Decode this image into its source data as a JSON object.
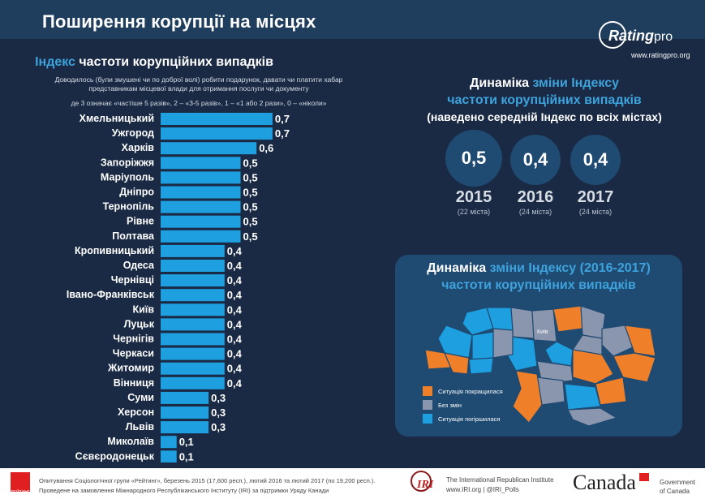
{
  "header": {
    "title": "Поширення корупції на місцях"
  },
  "logo": {
    "name_main": "Rating",
    "name_suffix": "pro",
    "url": "www.ratingpro.org"
  },
  "left": {
    "title_accent": "Індекс",
    "title_rest": " частоти корупційних випадків",
    "note_line1": "Доводилось (були змушені чи по доброї волі) робити подарунок, давати чи платити хабар",
    "note_line2": "представникам місцевої влади для отримання послуги чи документу",
    "note_scale": "де 3 означає «частіше 5 разів», 2 – «3-5 разів», 1 – «1 або 2 рази», 0 – «ніколи»"
  },
  "dynamics": {
    "title_w": "Динаміка",
    "title_a": " зміни Індексу",
    "line2": "частоти корупційних випадків",
    "line3": "(наведено середній Індекс по всіх містах)",
    "items": [
      {
        "value": "0,5",
        "year": "2015",
        "note": "(22 міста)"
      },
      {
        "value": "0,4",
        "year": "2016",
        "note": "(24 міста)"
      },
      {
        "value": "0,4",
        "year": "2017",
        "note": "(24 міста)"
      }
    ]
  },
  "map": {
    "title_w": "Динаміка",
    "title_a": " зміни Індексу (2016-2017)",
    "line2": "частоти корупційних випадків",
    "kyiv_label": "Київ",
    "colors": {
      "improved": "#f07f2a",
      "nochange": "#8a95ae",
      "worse": "#1e9fe0"
    },
    "legend": [
      {
        "label": "Ситуація покращилася",
        "color": "#f07f2a"
      },
      {
        "label": "Без змін",
        "color": "#8a95ae"
      },
      {
        "label": "Ситуація погіршилася",
        "color": "#1e9fe0"
      }
    ]
  },
  "footer": {
    "rating_logo": "РЕЙТИНГ",
    "line1": "Опитування Соціологічної групи «Рейтинг», березень 2015 (17,600 респ.), лютий 2016 та лютий 2017 (по 19,200 респ.).",
    "line2": "Проведене на замовлення Міжнародного Республіканського Інституту (IRI) за підтримки Уряду Канади",
    "iri_logo": "IRI",
    "iri_name": "The International Republican Institute",
    "iri_site": "www.IRI.org | @IRI_Polls",
    "canada": "Canada",
    "gov1": "Government",
    "gov2": "of Canada"
  },
  "chart_data": {
    "type": "bar",
    "orientation": "horizontal",
    "categories": [
      "Хмельницький",
      "Ужгород",
      "Харків",
      "Запоріжжя",
      "Маріуполь",
      "Дніпро",
      "Тернопіль",
      "Рівне",
      "Полтава",
      "Кропивницький",
      "Одеса",
      "Чернівці",
      "Івано-Франківськ",
      "Київ",
      "Луцьк",
      "Чернігів",
      "Черкаси",
      "Житомир",
      "Вінниця",
      "Суми",
      "Херсон",
      "Львів",
      "Миколаїв",
      "Сєвєродонецьк"
    ],
    "values": [
      0.7,
      0.7,
      0.6,
      0.5,
      0.5,
      0.5,
      0.5,
      0.5,
      0.5,
      0.4,
      0.4,
      0.4,
      0.4,
      0.4,
      0.4,
      0.4,
      0.4,
      0.4,
      0.4,
      0.3,
      0.3,
      0.3,
      0.1,
      0.1
    ],
    "value_labels": [
      "0,7",
      "0,7",
      "0,6",
      "0,5",
      "0,5",
      "0,5",
      "0,5",
      "0,5",
      "0,5",
      "0,4",
      "0,4",
      "0,4",
      "0,4",
      "0,4",
      "0,4",
      "0,4",
      "0,4",
      "0,4",
      "0,4",
      "0,3",
      "0,3",
      "0,3",
      "0,1",
      "0,1"
    ],
    "bar_color": "#1e9fe0",
    "grid": false
  }
}
